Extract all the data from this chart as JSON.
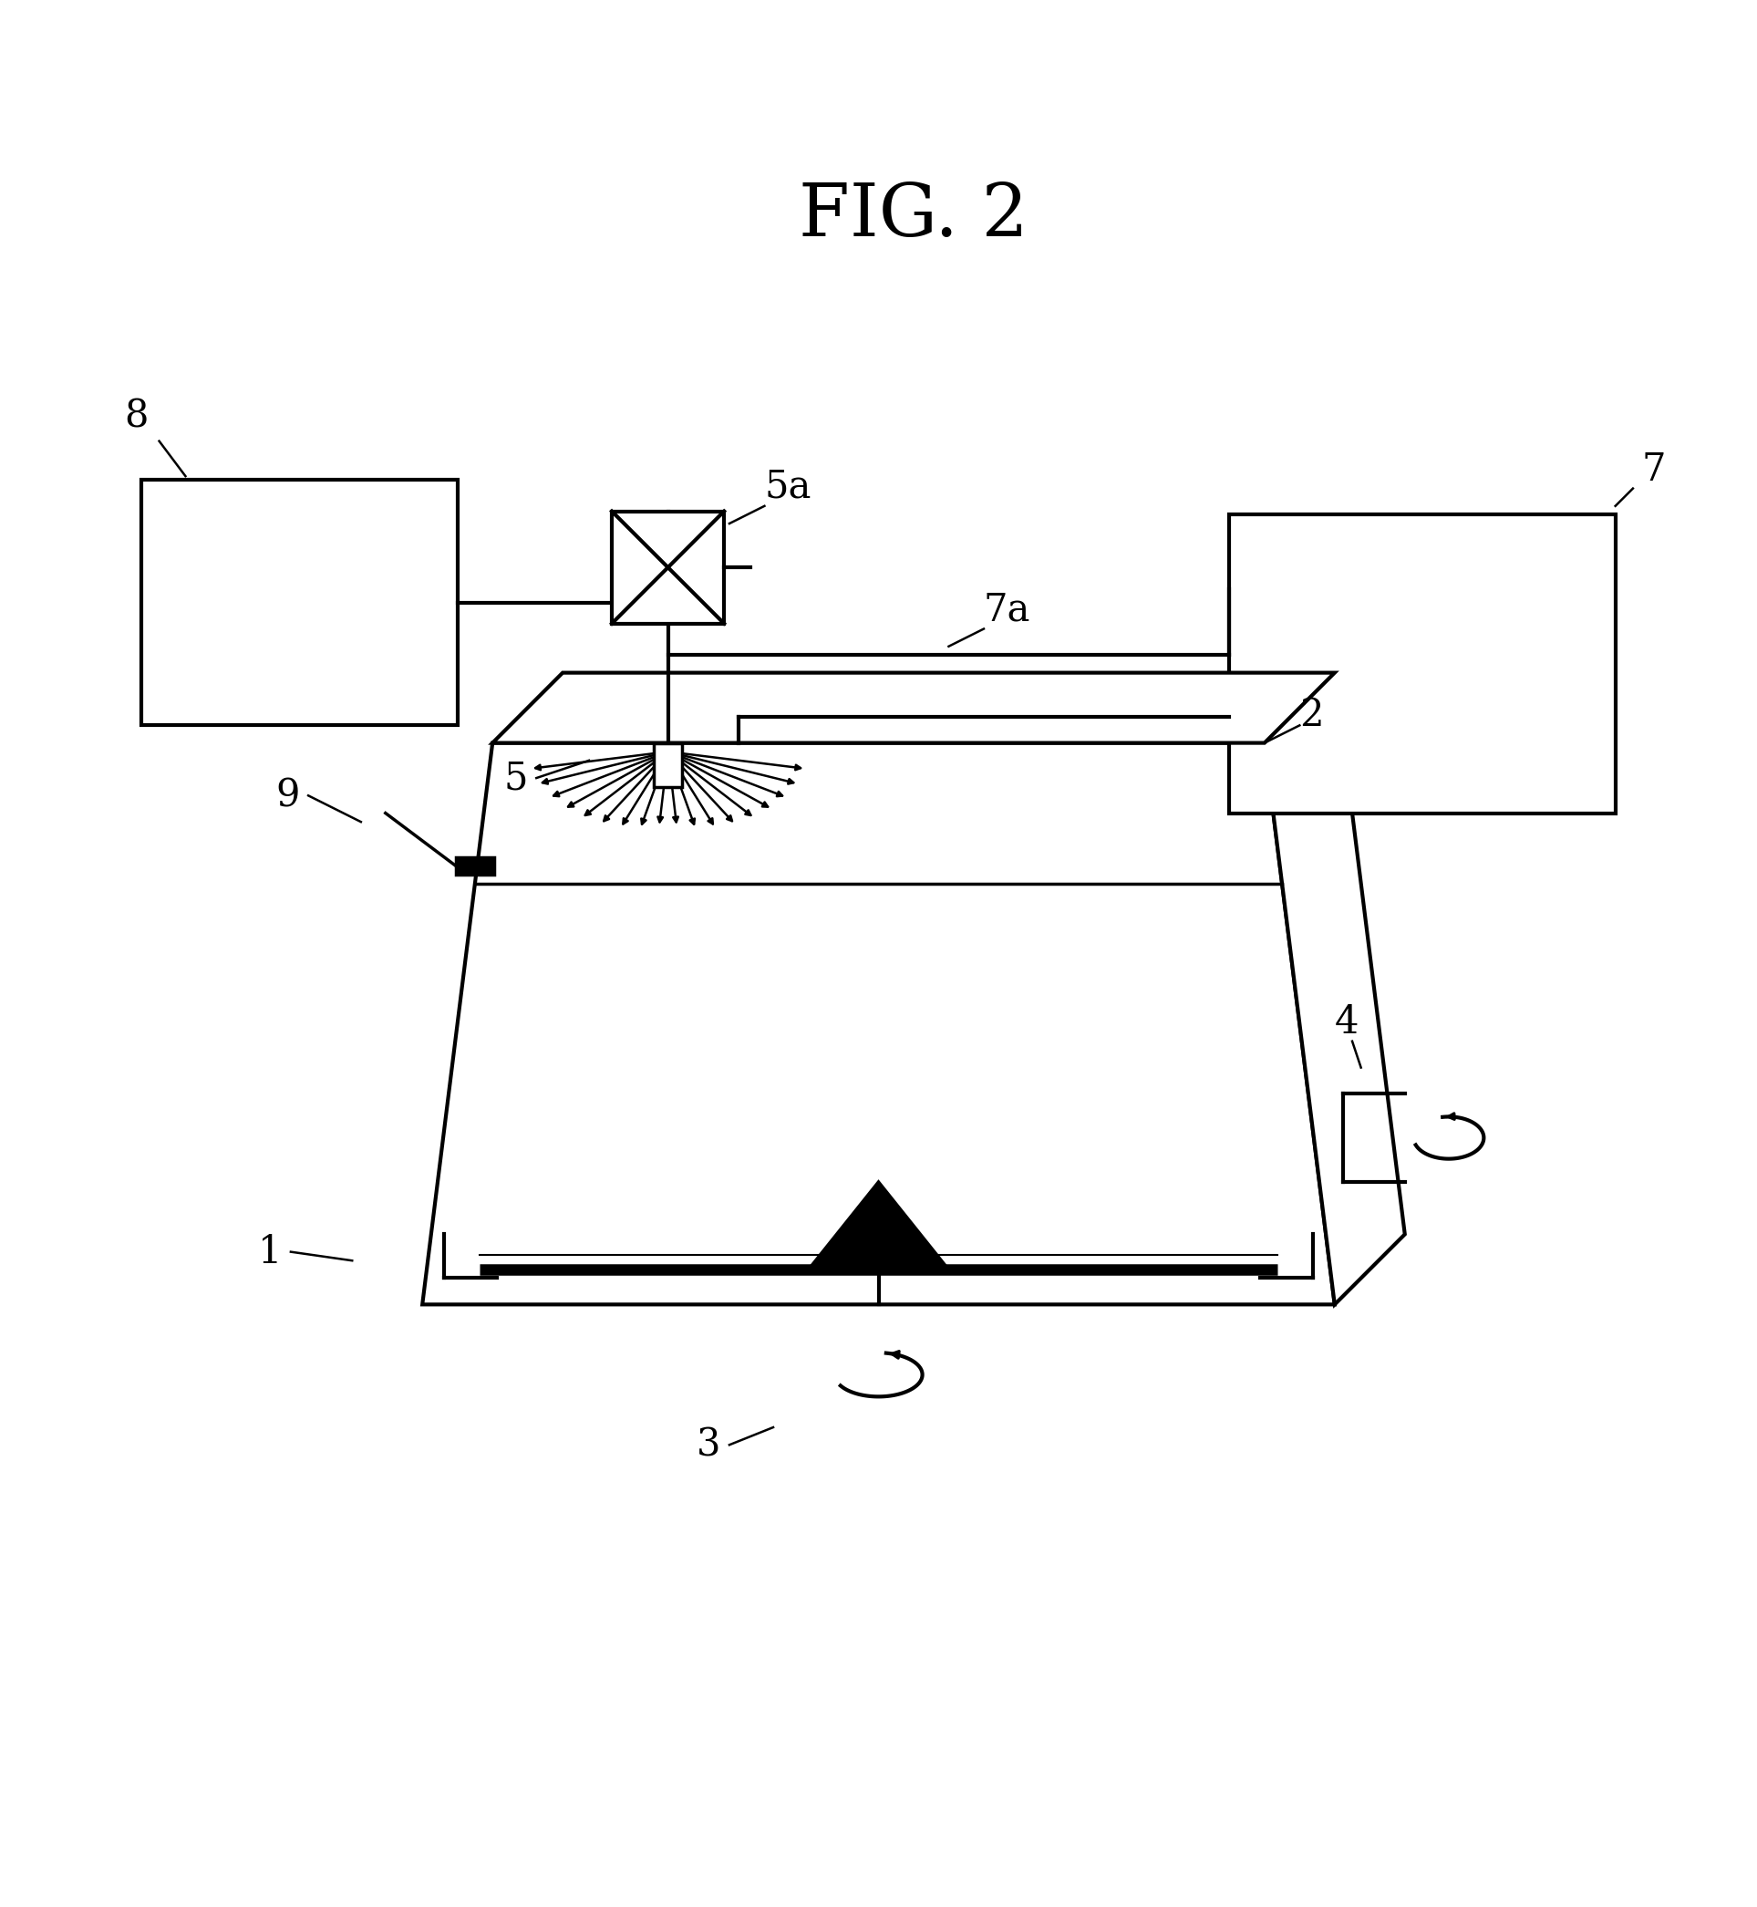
{
  "title": "FIG. 2",
  "title_fontsize": 58,
  "label_fontsize": 30,
  "background_color": "#ffffff",
  "line_color": "#000000",
  "fig_width": 19.27,
  "fig_height": 20.91
}
